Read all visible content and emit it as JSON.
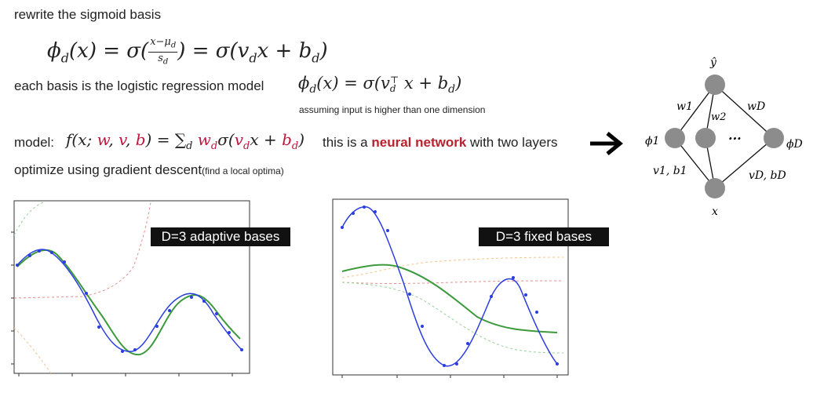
{
  "title": "rewrite the sigmoid basis",
  "equation1": "ϕd(x) = σ((x−μd)/sd) = σ(vd x + bd)",
  "eq1": {
    "phi": "ϕ",
    "d": "d",
    "x": "x",
    "sigma": "σ",
    "num_a": "x−μ",
    "num_b": "d",
    "den_a": "s",
    "den_b": "d",
    "v": "v",
    "b": "b"
  },
  "basis_line": "each basis is the logistic regression model",
  "equation2": "ϕd(x) = σ(vd⊤ x + bd)",
  "eq2": {
    "phi": "ϕ",
    "d": "d",
    "x": "x",
    "sigma": "σ",
    "v": "v",
    "T": "⊤",
    "b": "b"
  },
  "assumption_note": "assuming input is higher than one dimension",
  "model_label": "model:",
  "model_eq": {
    "f": "f",
    "args": "(x;",
    "w": "w",
    "v": "v",
    "b": "b",
    "sum": "∑",
    "sub_d": "d",
    "wd": "w",
    "sigma": "σ",
    "vd": "v",
    "x": "x",
    "bd": "b"
  },
  "nn_text": {
    "pre": "this is a",
    "highlight": "neural network",
    "post": "with two layers"
  },
  "optimize_text": "optimize using gradient descent",
  "optimize_note": "(find a local optima)",
  "arrow_icon": "right-arrow-icon",
  "network": {
    "output_label": "ŷ",
    "hidden_first": "ϕ1",
    "hidden_last": "ϕD",
    "ellipsis": "...",
    "w1": "w1",
    "w2": "w2",
    "wD": "wD",
    "v1b1": "v1, b1",
    "vDbD": "vD, bD",
    "input_label": "x"
  },
  "plot_left": {
    "label": "D=3 adaptive bases"
  },
  "plot_right": {
    "label": "D=3 fixed bases"
  },
  "colors": {
    "blue": "#2b3de0",
    "green": "#3c9a3c",
    "red_dashed": "#e4908f",
    "orange_dashed": "#f5c48f",
    "green_dashed": "#98cf98",
    "node": "#8c8c8c",
    "label_bg": "#111111"
  }
}
